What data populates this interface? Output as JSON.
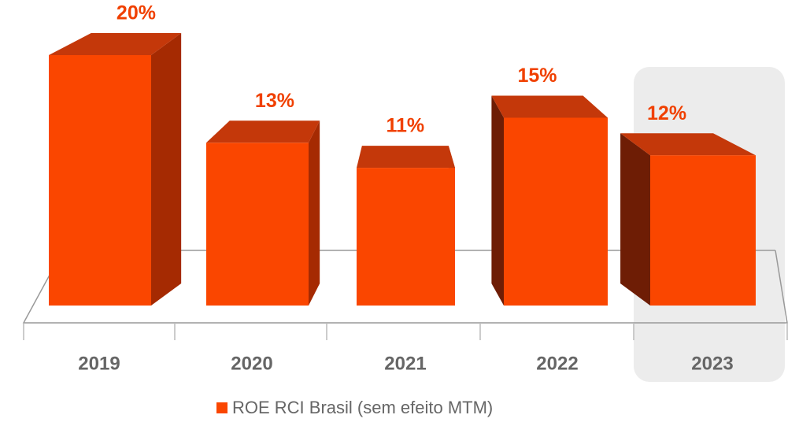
{
  "chart_data": {
    "type": "bar3d",
    "categories": [
      "2019",
      "2020",
      "2021",
      "2022",
      "2023"
    ],
    "series": [
      {
        "name": "ROE RCI Brasil (sem efeito MTM)",
        "color": "#fa4600",
        "values": [
          20,
          13,
          11,
          15,
          12
        ],
        "value_labels": [
          "20%",
          "13%",
          "11%",
          "15%",
          "12%"
        ]
      }
    ],
    "highlight": "2023"
  }
}
